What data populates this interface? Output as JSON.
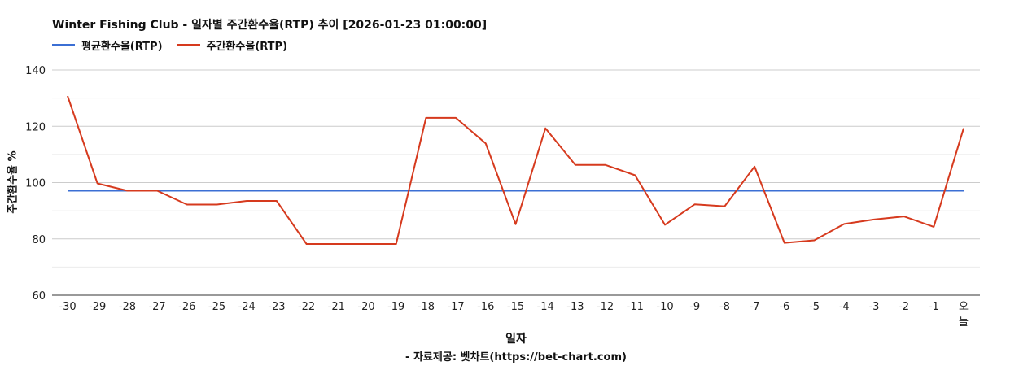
{
  "chart_data": {
    "type": "line",
    "title": "Winter Fishing Club - 일자별 주간환수율(RTP) 추이 [2026-01-23 01:00:00]",
    "xlabel": "일자",
    "ylabel": "주간환수율 %",
    "ylim": [
      60,
      140
    ],
    "yticks": [
      "60",
      "80",
      "100",
      "120",
      "140"
    ],
    "grid": true,
    "legend_position": "top-left",
    "categories": [
      "-30",
      "-29",
      "-28",
      "-27",
      "-26",
      "-25",
      "-24",
      "-23",
      "-22",
      "-21",
      "-20",
      "-19",
      "-18",
      "-17",
      "-16",
      "-15",
      "-14",
      "-13",
      "-12",
      "-11",
      "-10",
      "-9",
      "-8",
      "-7",
      "-6",
      "-5",
      "-4",
      "-3",
      "-2",
      "-1",
      "오늘"
    ],
    "series": [
      {
        "name": "평균환수율(RTP)",
        "color": "#3b6fd4",
        "values": [
          97.1,
          97.1,
          97.1,
          97.1,
          97.1,
          97.1,
          97.1,
          97.1,
          97.1,
          97.1,
          97.1,
          97.1,
          97.1,
          97.1,
          97.1,
          97.1,
          97.1,
          97.1,
          97.1,
          97.1,
          97.1,
          97.1,
          97.1,
          97.1,
          97.1,
          97.1,
          97.1,
          97.1,
          97.1,
          97.1,
          97.1
        ]
      },
      {
        "name": "주간환수율(RTP)",
        "color": "#d63a1e",
        "values": [
          130.8,
          99.7,
          97.1,
          97.1,
          92.2,
          92.2,
          93.5,
          93.5,
          78.2,
          78.2,
          78.2,
          78.2,
          123.0,
          123.0,
          113.9,
          85.2,
          119.3,
          106.3,
          106.3,
          102.6,
          85.0,
          92.3,
          91.6,
          105.7,
          78.6,
          79.5,
          85.3,
          86.9,
          88.0,
          84.3,
          119.3
        ]
      }
    ]
  },
  "source_note": "- 자료제공: 벳차트(https://bet-chart.com)"
}
